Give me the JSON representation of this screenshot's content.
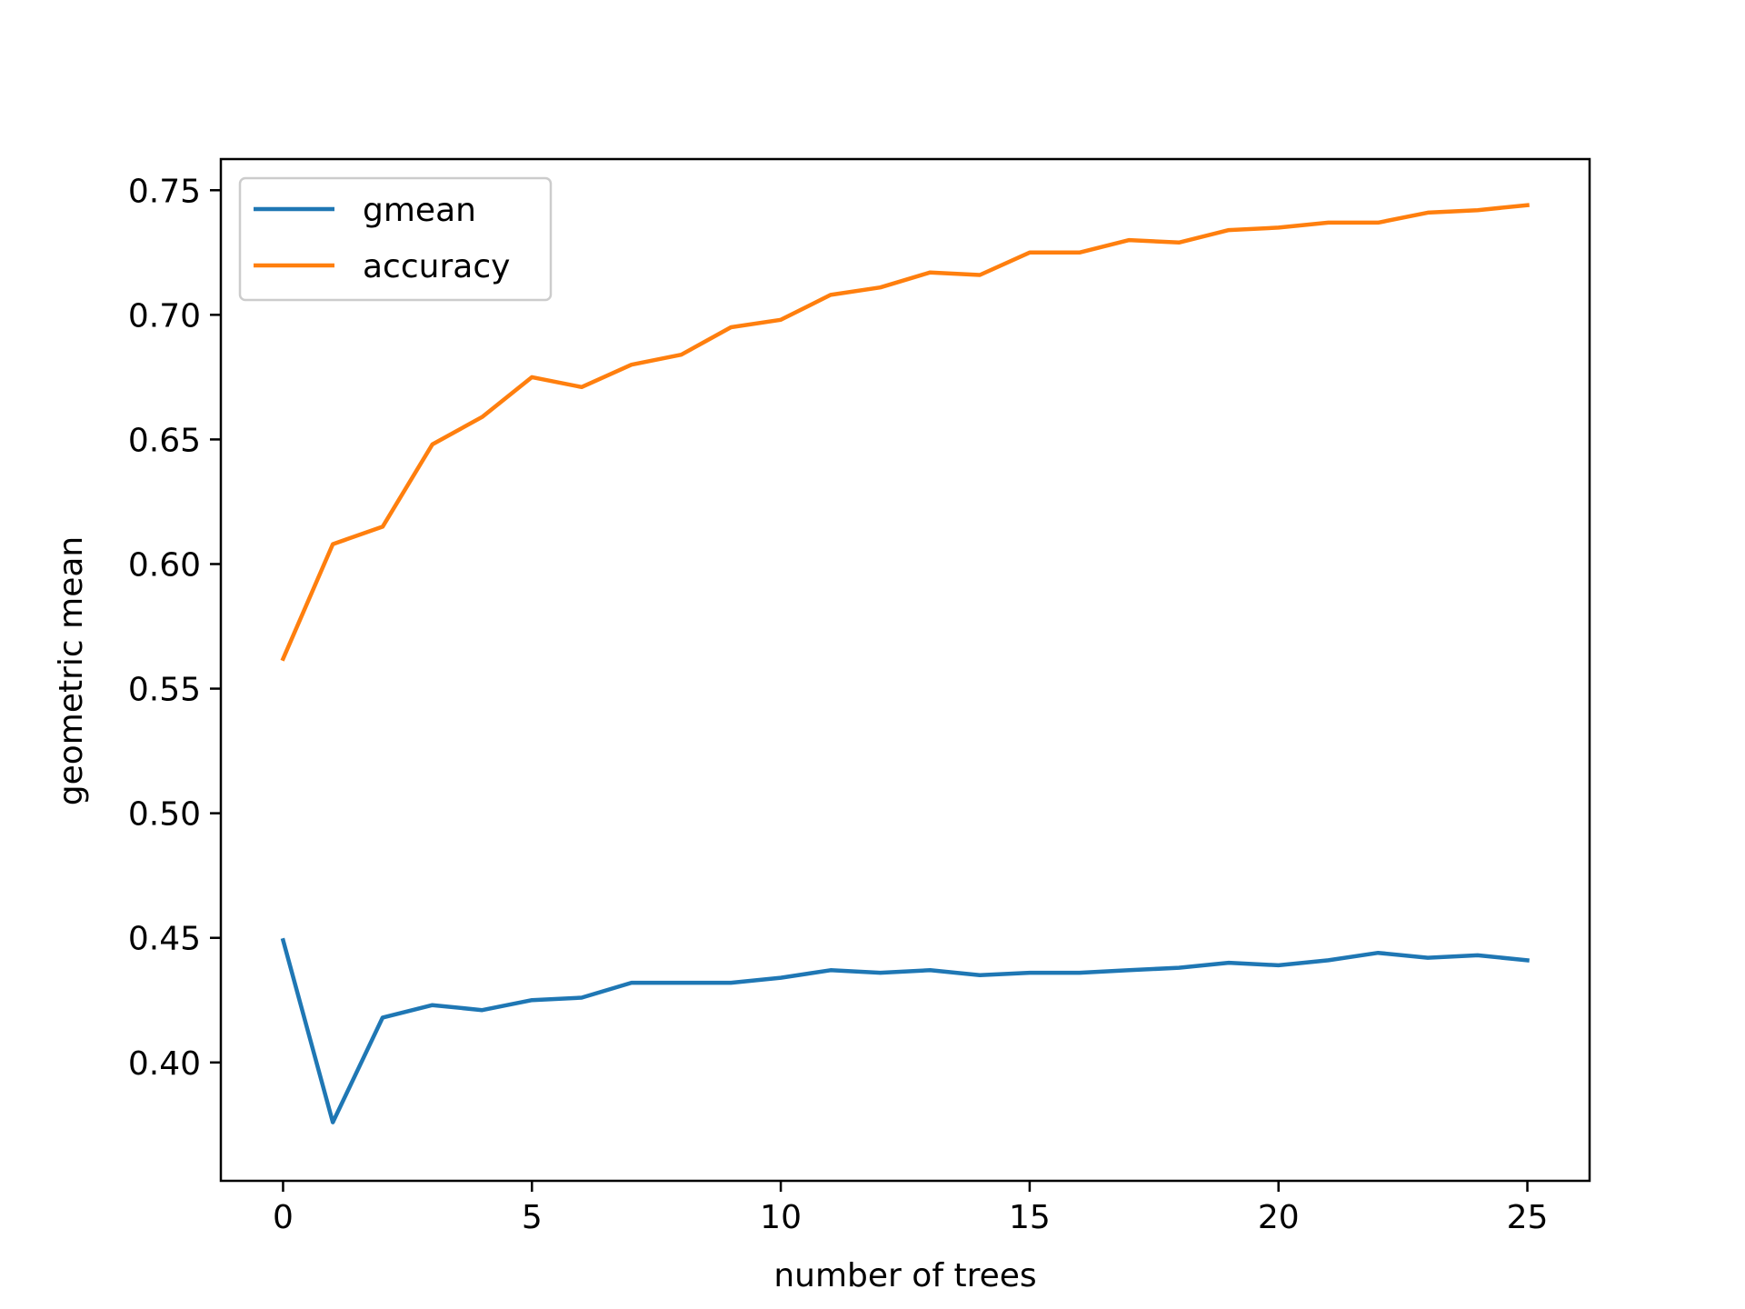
{
  "chart_data": {
    "type": "line",
    "title": "",
    "xlabel": "number of trees",
    "ylabel": "geometric mean",
    "xlim": [
      -1.25,
      26.25
    ],
    "ylim": [
      0.3525,
      0.7625
    ],
    "xticks": [
      0,
      5,
      10,
      15,
      20,
      25
    ],
    "xtick_labels": [
      "0",
      "5",
      "10",
      "15",
      "20",
      "25"
    ],
    "yticks": [
      0.4,
      0.45,
      0.5,
      0.55,
      0.6,
      0.65,
      0.7,
      0.75
    ],
    "ytick_labels": [
      "0.40",
      "0.45",
      "0.50",
      "0.55",
      "0.60",
      "0.65",
      "0.70",
      "0.75"
    ],
    "grid": false,
    "legend_position": "top-left",
    "x": [
      0,
      1,
      2,
      3,
      4,
      5,
      6,
      7,
      8,
      9,
      10,
      11,
      12,
      13,
      14,
      15,
      16,
      17,
      18,
      19,
      20,
      21,
      22,
      23,
      24,
      25
    ],
    "series": [
      {
        "name": "gmean",
        "color": "#1f77b4",
        "values": [
          0.449,
          0.376,
          0.418,
          0.423,
          0.421,
          0.425,
          0.426,
          0.432,
          0.432,
          0.432,
          0.434,
          0.437,
          0.436,
          0.437,
          0.435,
          0.436,
          0.436,
          0.437,
          0.438,
          0.44,
          0.439,
          0.441,
          0.444,
          0.442,
          0.443,
          0.441
        ]
      },
      {
        "name": "accuracy",
        "color": "#ff7f0e",
        "values": [
          0.562,
          0.608,
          0.615,
          0.648,
          0.659,
          0.675,
          0.671,
          0.68,
          0.684,
          0.695,
          0.698,
          0.708,
          0.711,
          0.717,
          0.716,
          0.725,
          0.725,
          0.73,
          0.729,
          0.734,
          0.735,
          0.737,
          0.737,
          0.741,
          0.742,
          0.744
        ]
      }
    ]
  }
}
